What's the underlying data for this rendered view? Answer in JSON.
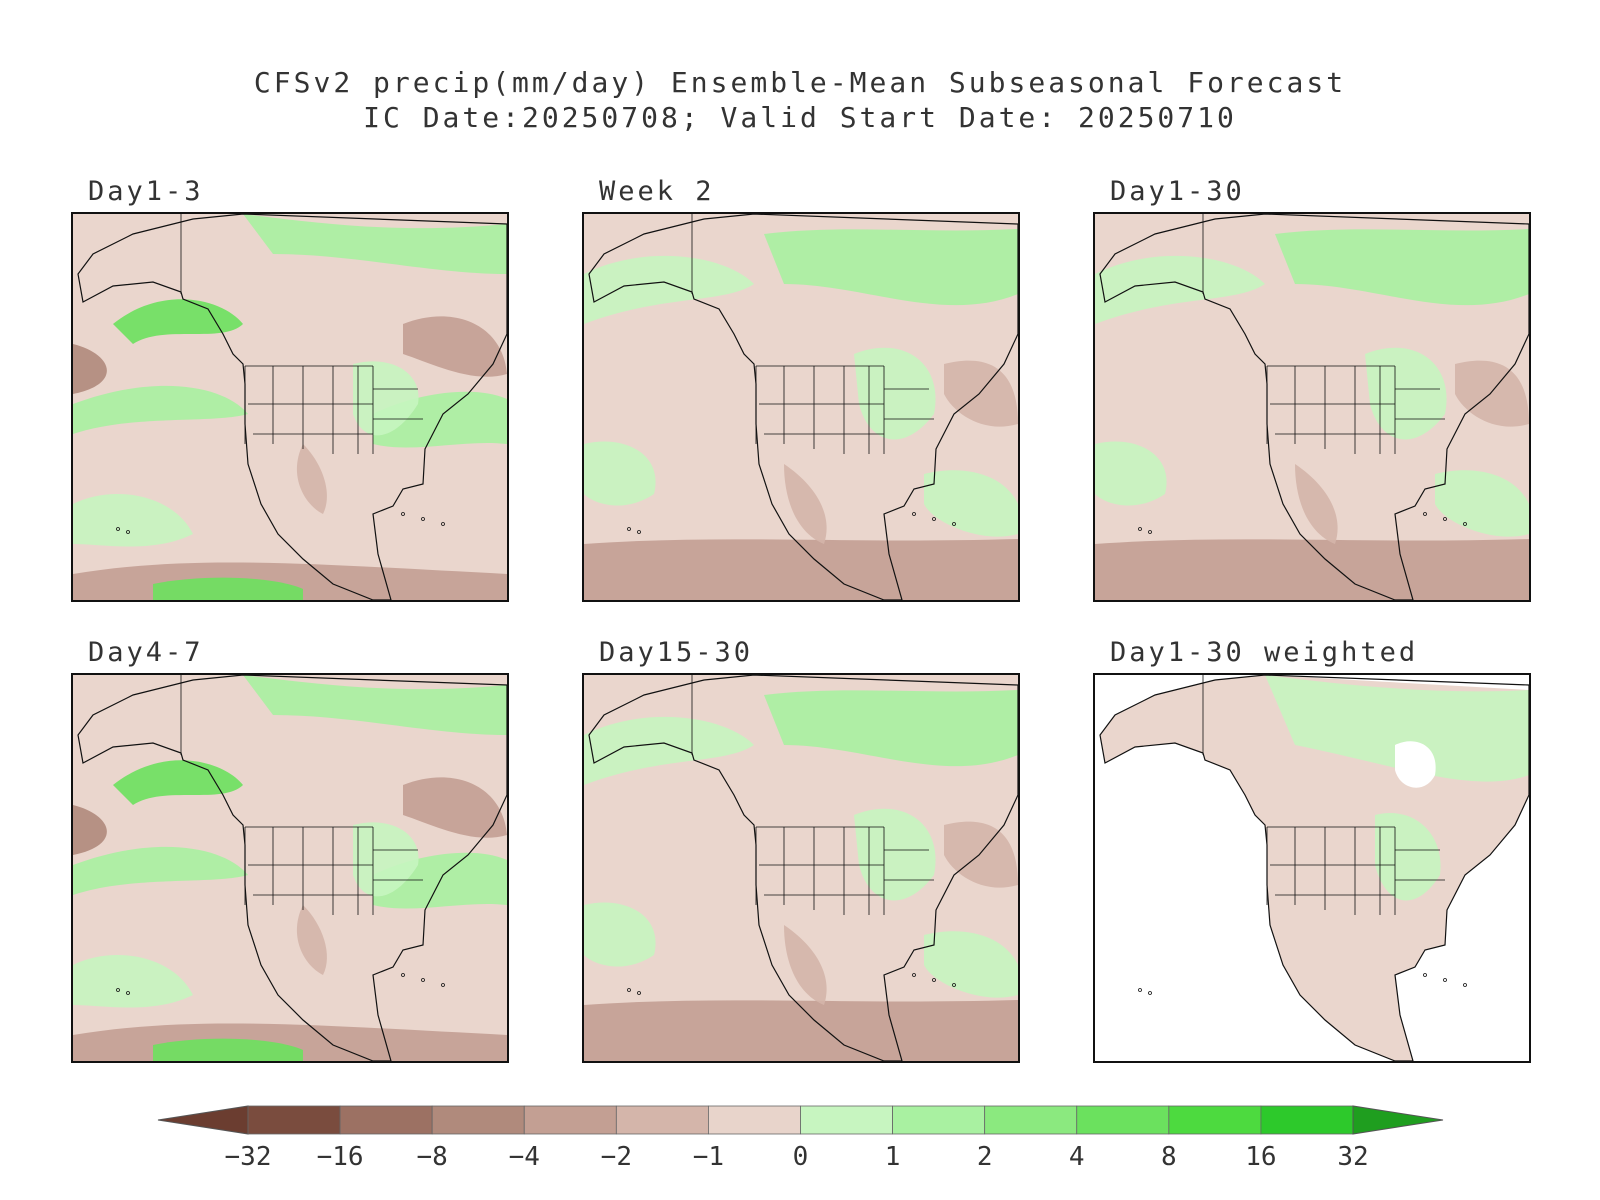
{
  "title": {
    "line1": "CFSv2 precip(mm/day) Ensemble-Mean Subseasonal Forecast",
    "line2": "IC Date:20250708; Valid Start Date: 20250710"
  },
  "panels": [
    {
      "id": "day1-3",
      "label": "Day1-3",
      "variant": "strong"
    },
    {
      "id": "week2",
      "label": "Week 2",
      "variant": "mild"
    },
    {
      "id": "day1-30",
      "label": "Day1-30",
      "variant": "mild"
    },
    {
      "id": "day4-7",
      "label": "Day4-7",
      "variant": "strong"
    },
    {
      "id": "day15-30",
      "label": "Day15-30",
      "variant": "mild"
    },
    {
      "id": "day1-30-weighted",
      "label": "Day1-30 weighted",
      "variant": "weighted"
    }
  ],
  "colorbar": {
    "ticks": [
      "−32",
      "−16",
      "−8",
      "−4",
      "−2",
      "−1",
      "0",
      "1",
      "2",
      "4",
      "8",
      "16",
      "32"
    ],
    "colors": [
      "#7a4c3e",
      "#9c7163",
      "#b08a7c",
      "#c39f93",
      "#d4b5aa",
      "#e8d4cb",
      "#c7f5c0",
      "#a9f1a1",
      "#8be97f",
      "#6be15e",
      "#4dda3f",
      "#2dc92b"
    ],
    "low_end": "#6b3d30",
    "high_end": "#1f9e1f"
  },
  "map_colors": {
    "neutral": "#ead6cd",
    "brown_light": "#d4b5aa",
    "brown_mid": "#c39f93",
    "brown_dark": "#b08a7c",
    "green_light": "#c7f5c0",
    "green_mid": "#a9f1a1",
    "green_strong": "#6be15e",
    "missing": "#ffffff",
    "coastline": "#111111"
  }
}
